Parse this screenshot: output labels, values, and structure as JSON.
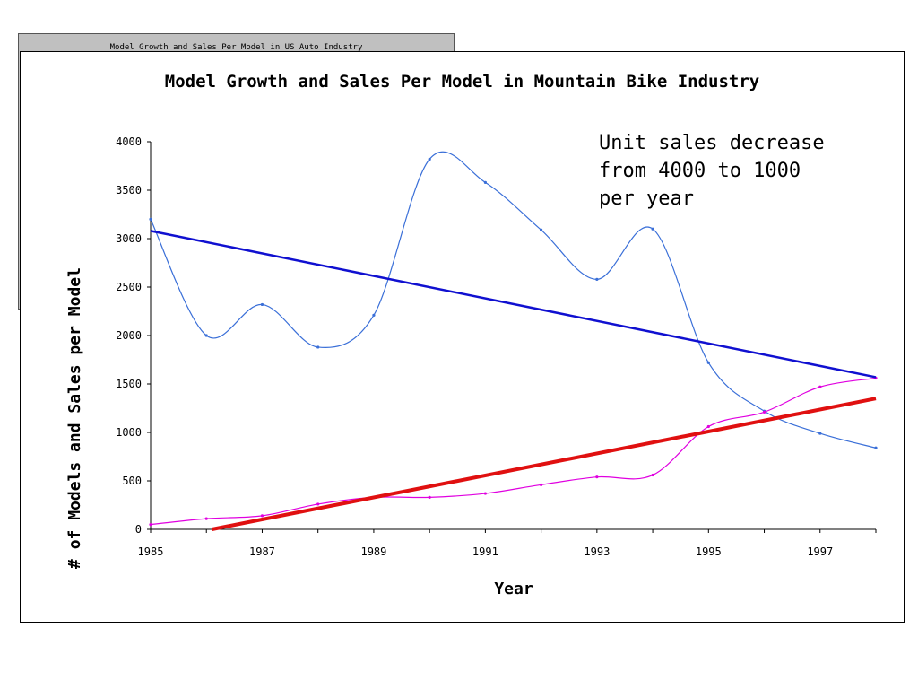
{
  "background_card": {
    "title": "Model Growth and Sales Per Model in US Auto Industry"
  },
  "chart_data": {
    "type": "line",
    "title": "Model Growth and Sales Per Model in Mountain Bike Industry",
    "xlabel": "Year",
    "ylabel": "# of Models and Sales per Model",
    "annotation": "Unit sales decrease\nfrom 4000 to 1000\nper year",
    "xlim": [
      1985,
      1998
    ],
    "ylim": [
      0,
      4000
    ],
    "x_ticks": [
      1985,
      1987,
      1989,
      1991,
      1993,
      1995,
      1997
    ],
    "y_ticks": [
      0,
      500,
      1000,
      1500,
      2000,
      2500,
      3000,
      3500,
      4000
    ],
    "grid": false,
    "legend": "none",
    "series": [
      {
        "color": "#3a6fd8",
        "smooth": true,
        "marker": "dot",
        "x": [
          1985,
          1986,
          1987,
          1988,
          1989,
          1990,
          1991,
          1992,
          1993,
          1994,
          1995,
          1996,
          1997,
          1998
        ],
        "y": [
          3200,
          2000,
          2320,
          1880,
          2210,
          3820,
          3580,
          3090,
          2580,
          3100,
          1720,
          1220,
          990,
          840
        ]
      },
      {
        "color": "#e000e0",
        "smooth": true,
        "marker": "dot",
        "x": [
          1985,
          1986,
          1987,
          1988,
          1989,
          1990,
          1991,
          1992,
          1993,
          1994,
          1995,
          1996,
          1997,
          1998
        ],
        "y": [
          50,
          110,
          140,
          260,
          330,
          330,
          370,
          460,
          540,
          560,
          1060,
          1210,
          1470,
          1560
        ]
      },
      {
        "color": "#1010d0",
        "trendline": true,
        "x": [
          1985,
          1998
        ],
        "y": [
          3080,
          1570
        ]
      },
      {
        "color": "#e01010",
        "trendline": true,
        "x": [
          1986.1,
          1998
        ],
        "y": [
          0,
          1350
        ]
      }
    ]
  }
}
